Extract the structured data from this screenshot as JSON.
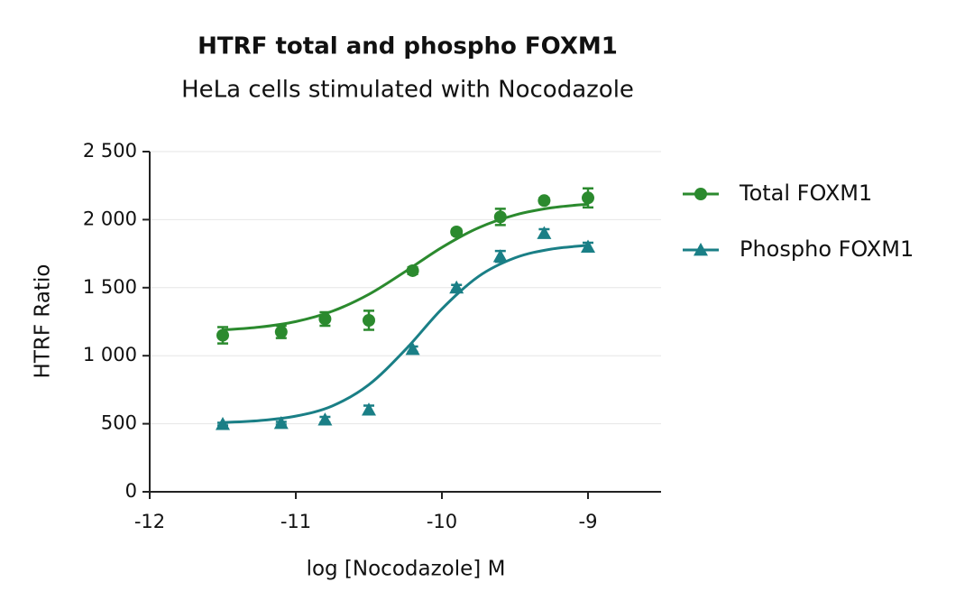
{
  "chart_data": {
    "type": "dose-response",
    "title": "HTRF total and phospho FOXM1",
    "subtitle": "HeLa cells stimulated with Nocodazole",
    "x_label": "log [Nocodazole] M",
    "y_label": "HTRF Ratio",
    "xlim": [
      -12,
      -8.5
    ],
    "xticks": [
      -12,
      -11,
      -10,
      -9
    ],
    "ylim": [
      0,
      2500
    ],
    "yticks": [
      0,
      500,
      {
        "value": 1000,
        "label": "1 000"
      },
      {
        "value": 1500,
        "label": "1 500"
      },
      {
        "value": 2000,
        "label": "2 000"
      },
      {
        "value": 2500,
        "label": "2 500"
      }
    ],
    "grid": true,
    "legend": "right",
    "x": [
      -11.5,
      -11.1,
      -10.8,
      -10.5,
      -10.2,
      -9.9,
      -9.6,
      -9.3,
      -9.0
    ],
    "fit_x": [
      -11.5,
      -11.25,
      -11,
      -10.75,
      -10.5,
      -10.25,
      -10,
      -9.75,
      -9.5,
      -9.25,
      -9
    ],
    "series": [
      {
        "name": "Total FOXM1",
        "color": "#2b8a2e",
        "marker": "circle",
        "values": [
          1150,
          1175,
          1270,
          1260,
          1625,
          1910,
          2020,
          2140,
          2160
        ],
        "errors": [
          60,
          45,
          50,
          70,
          25,
          20,
          60,
          20,
          70
        ],
        "fit_values": [
          1189,
          1210,
          1251,
          1327,
          1451,
          1619,
          1796,
          1940,
          2034,
          2087,
          2114
        ]
      },
      {
        "name": "Phospho FOXM1",
        "color": "#1a7f86",
        "marker": "triangle",
        "values": [
          497,
          504,
          530,
          603,
          1048,
          1500,
          1730,
          1900,
          1800
        ],
        "errors": [
          10,
          10,
          20,
          30,
          20,
          20,
          40,
          30,
          30
        ],
        "fit_values": [
          509,
          523,
          556,
          631,
          787,
          1044,
          1344,
          1582,
          1719,
          1784,
          1811
        ]
      }
    ]
  }
}
